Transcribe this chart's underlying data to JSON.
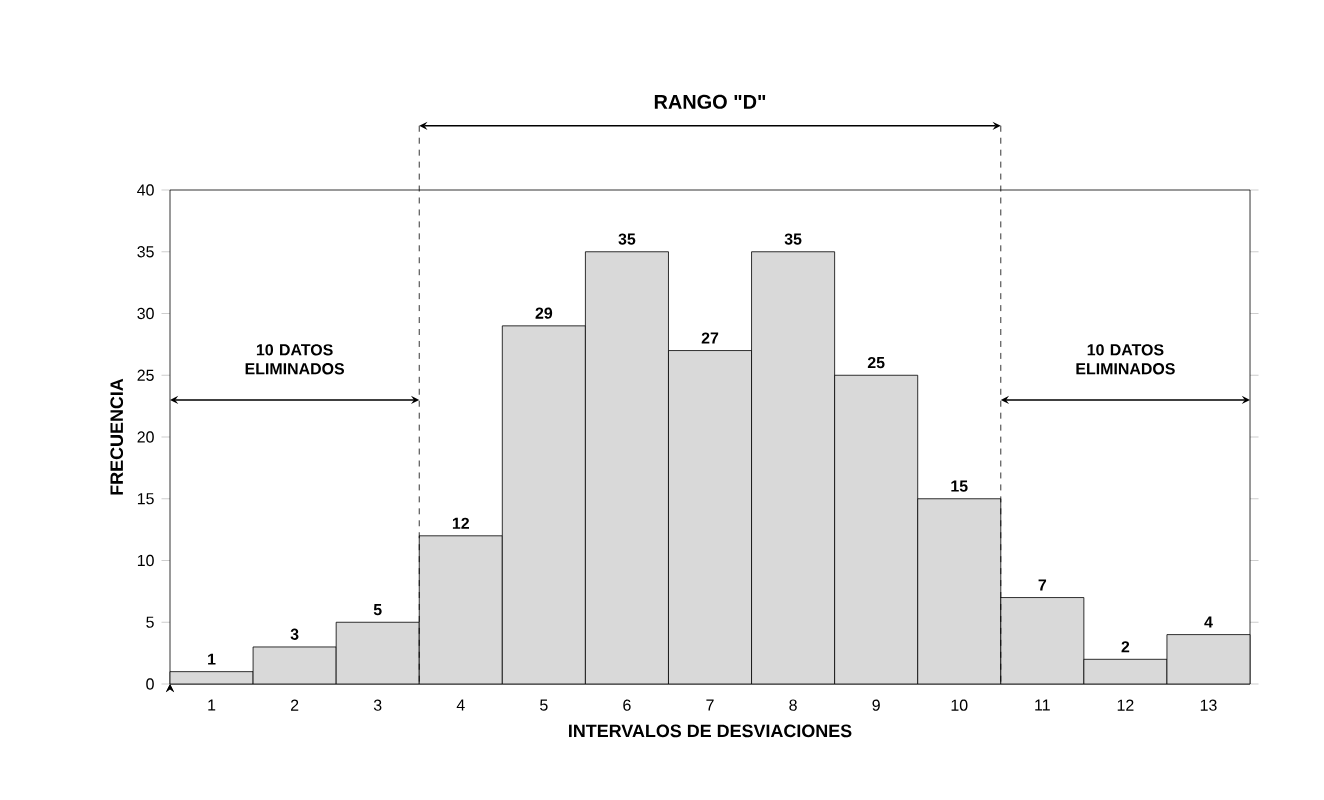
{
  "chart_data": {
    "type": "bar",
    "xlabel": "INTERVALOS DE DESVIACIONES",
    "ylabel": "FRECUENCIA",
    "categories": [
      "1",
      "2",
      "3",
      "4",
      "5",
      "6",
      "7",
      "8",
      "9",
      "10",
      "11",
      "12",
      "13"
    ],
    "values": [
      1,
      3,
      5,
      12,
      29,
      35,
      27,
      35,
      25,
      15,
      7,
      2,
      4
    ],
    "color": "#d9d9d9",
    "data_labels": true,
    "ylim": [
      0,
      40
    ],
    "yticks": [
      0,
      5,
      10,
      15,
      20,
      25,
      30,
      35,
      40
    ],
    "annotations": [
      "RANGO \"D\"",
      "10 DATOS ELIMINADOS",
      "10 DATOS ELIMINADOS"
    ]
  }
}
